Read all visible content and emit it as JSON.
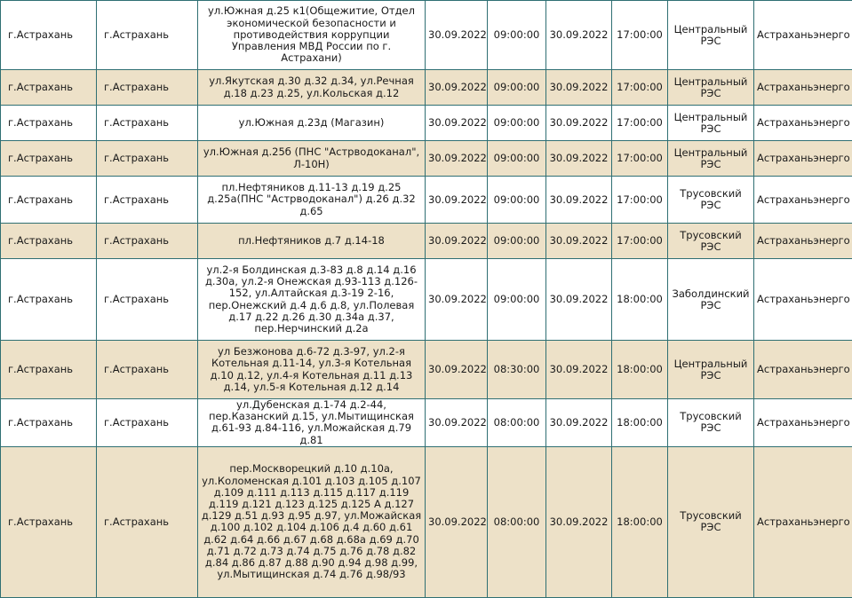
{
  "rows": [
    {
      "region": "г.Астрахань",
      "city": "г.Астрахань",
      "address": "ул.Южная д.25 к1(Общежитие, Отдел экономической безопасности и противодействия коррупции Управления МВД России по г. Астрахани)",
      "start_date": "30.09.2022",
      "start_time": "09:00:00",
      "end_date": "30.09.2022",
      "end_time": "17:00:00",
      "res": "Центральный РЭС",
      "company": "Астраханьэнерго"
    },
    {
      "region": "г.Астрахань",
      "city": "г.Астрахань",
      "address": "ул.Якутская д.30 д.32 д.34, ул.Речная д.18 д.23 д.25, ул.Кольская д.12",
      "start_date": "30.09.2022",
      "start_time": "09:00:00",
      "end_date": "30.09.2022",
      "end_time": "17:00:00",
      "res": "Центральный РЭС",
      "company": "Астраханьэнерго"
    },
    {
      "region": "г.Астрахань",
      "city": "г.Астрахань",
      "address": "ул.Южная д.23д (Магазин)",
      "start_date": "30.09.2022",
      "start_time": "09:00:00",
      "end_date": "30.09.2022",
      "end_time": "17:00:00",
      "res": "Центральный РЭС",
      "company": "Астраханьэнерго"
    },
    {
      "region": "г.Астрахань",
      "city": "г.Астрахань",
      "address": "ул.Южная д.25б (ПНС \"Астрводоканал\", Л-10Н)",
      "start_date": "30.09.2022",
      "start_time": "09:00:00",
      "end_date": "30.09.2022",
      "end_time": "17:00:00",
      "res": "Центральный РЭС",
      "company": "Астраханьэнерго"
    },
    {
      "region": "г.Астрахань",
      "city": "г.Астрахань",
      "address": "пл.Нефтяников д.11-13 д.19 д.25 д.25а(ПНС \"Астрводоканал\") д.26 д.32 д.65",
      "start_date": "30.09.2022",
      "start_time": "09:00:00",
      "end_date": "30.09.2022",
      "end_time": "17:00:00",
      "res": "Трусовский РЭС",
      "company": "Астраханьэнерго"
    },
    {
      "region": "г.Астрахань",
      "city": "г.Астрахань",
      "address": "пл.Нефтяников д.7 д.14-18",
      "start_date": "30.09.2022",
      "start_time": "09:00:00",
      "end_date": "30.09.2022",
      "end_time": "17:00:00",
      "res": "Трусовский РЭС",
      "company": "Астраханьэнерго"
    },
    {
      "region": "г.Астрахань",
      "city": "г.Астрахань",
      "address": "ул.2-я Болдинская д.3-83 д.8 д.14 д.16 д.30а, ул.2-я Онежская д.93-113 д.126-152, ул.Алтайская д.3-19 2-16, пер.Онежский д.4 д.6 д.8, ул.Полевая д.17 д.22 д.26 д.30 д.34а д.37, пер.Нерчинский д.2а",
      "start_date": "30.09.2022",
      "start_time": "09:00:00",
      "end_date": "30.09.2022",
      "end_time": "18:00:00",
      "res": "Заболдинский РЭС",
      "company": "Астраханьэнерго"
    },
    {
      "region": "г.Астрахань",
      "city": "г.Астрахань",
      "address": "ул Безжонова д.6-72 д.3-97, ул.2-я Котельная д.11-14, ул.3-я Котельная д.10 д.12, ул.4-я Котельная д.11 д.13 д.14, ул.5-я Котельная д.12 д.14",
      "start_date": "30.09.2022",
      "start_time": "08:30:00",
      "end_date": "30.09.2022",
      "end_time": "18:00:00",
      "res": "Центральный РЭС",
      "company": "Астраханьэнерго"
    },
    {
      "region": "г.Астрахань",
      "city": "г.Астрахань",
      "address": "ул.Дубенская д.1-74 д.2-44, пер.Казанский д.15, ул.Мытищинская д.61-93 д.84-116, ул.Можайская д.79 д.81",
      "start_date": "30.09.2022",
      "start_time": "08:00:00",
      "end_date": "30.09.2022",
      "end_time": "18:00:00",
      "res": "Трусовский РЭС",
      "company": "Астраханьэнерго"
    },
    {
      "region": "г.Астрахань",
      "city": "г.Астрахань",
      "address": "пер.Москворецкий д.10 д.10а, ул.Коломенская д.101 д.103 д.105 д.107 д.109 д.111 д.113 д.115 д.117 д.119 д.119 д.121 д.123 д.125 д.125 А д.127 д.129 д.51 д.93 д.95 д.97, ул.Можайская д.100 д.102 д.104 д.106 д.4 д.60 д.61 д.62 д.64 д.66 д.67 д.68 д.68а д.69 д.70 д.71 д.72 д.73 д.74 д.75 д.76 д.78 д.82 д.84 д.86 д.87 д.88 д.90 д.94 д.98 д.99, ул.Мытищинская д.74 д.76 д.98/93",
      "start_date": "30.09.2022",
      "start_time": "08:00:00",
      "end_date": "30.09.2022",
      "end_time": "18:00:00",
      "res": "Трусовский РЭС",
      "company": "Астраханьэнерго"
    }
  ]
}
